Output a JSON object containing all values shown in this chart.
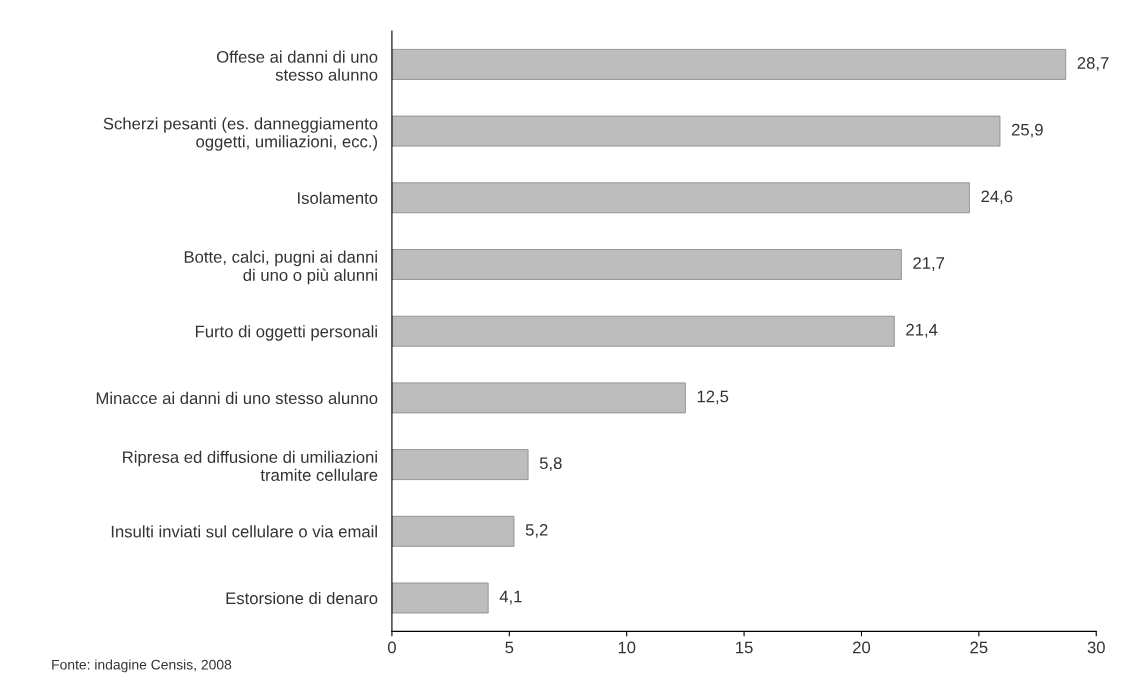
{
  "chart_data": {
    "type": "bar",
    "orientation": "horizontal",
    "categories": [
      "Offese ai danni di uno\nstesso alunno",
      "Scherzi pesanti (es. danneggiamento\noggetti, umiliazioni, ecc.)",
      "Isolamento",
      "Botte, calci, pugni ai danni\ndi uno o più alunni",
      "Furto di oggetti personali",
      "Minacce ai danni di uno stesso alunno",
      "Ripresa ed diffusione di umiliazioni\ntramite cellulare",
      "Insulti inviati sul cellulare o via email",
      "Estorsione di denaro"
    ],
    "values": [
      28.7,
      25.9,
      24.6,
      21.7,
      21.4,
      12.5,
      5.8,
      5.2,
      4.1
    ],
    "value_labels": [
      "28,7",
      "25,9",
      "24,6",
      "21,7",
      "21,4",
      "12,5",
      "5,8",
      "5,2",
      "4,1"
    ],
    "color": "#bdbdbd",
    "xlim": [
      0,
      30
    ],
    "xticks": [
      0,
      5,
      10,
      15,
      20,
      25,
      30
    ],
    "grid": false,
    "legend": false,
    "annotations": [
      "Fonte: indagine Censis, 2008"
    ]
  }
}
